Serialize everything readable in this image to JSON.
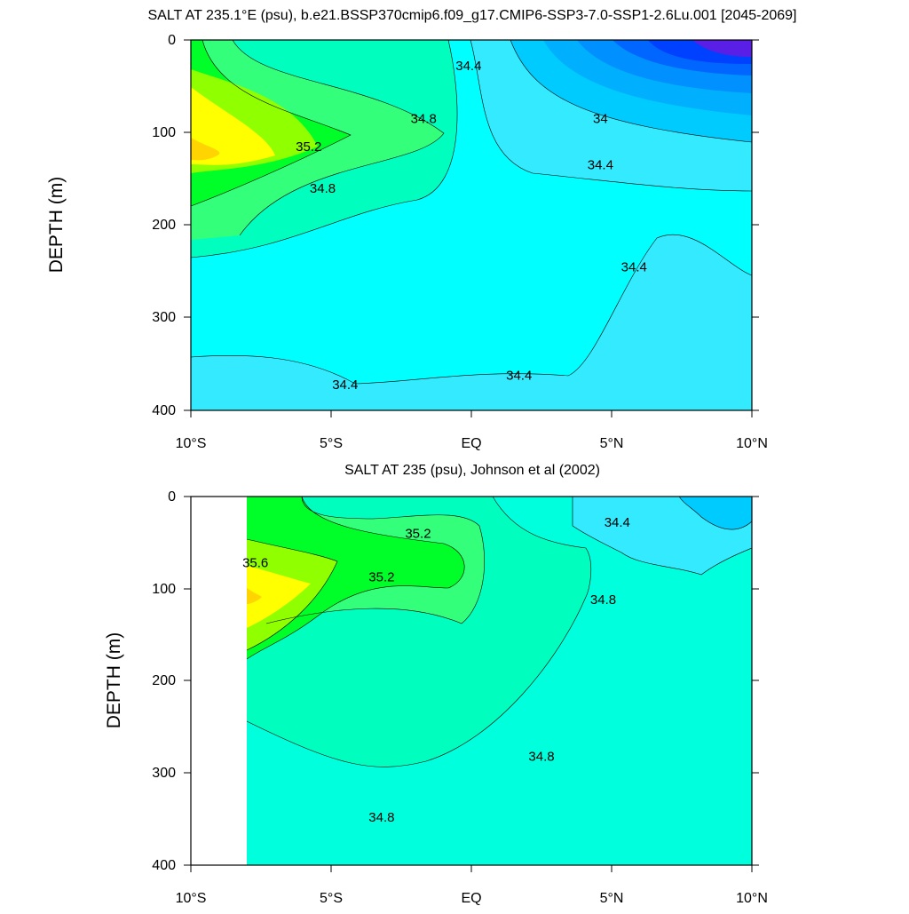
{
  "chart_data": [
    {
      "type": "contour",
      "title": "SALT AT 235.1°E (psu), b.e21.BSSP370cmip6.f09_g17.CMIP6-SSP3-7.0-SSP1-2.6Lu.001 [2045-2069]",
      "xlabel": "",
      "ylabel": "DEPTH (m)",
      "x_ticks": [
        "10°S",
        "5°S",
        "EQ",
        "5°N",
        "10°N"
      ],
      "y_ticks": [
        "0",
        "100",
        "200",
        "300",
        "400"
      ],
      "xlim": [
        -10,
        10
      ],
      "ylim": [
        400,
        0
      ],
      "contour_interval": 0.2,
      "contour_labels": [
        {
          "text": "34.4",
          "lon": -4.5,
          "depth": 372
        },
        {
          "text": "34.4",
          "lon": 1.7,
          "depth": 362
        },
        {
          "text": "34.4",
          "lon": 5.8,
          "depth": 245
        },
        {
          "text": "34.4",
          "lon": 4.6,
          "depth": 135
        },
        {
          "text": "34.4",
          "lon": -0.1,
          "depth": 28
        },
        {
          "text": "34",
          "lon": 4.6,
          "depth": 85
        },
        {
          "text": "34.8",
          "lon": -1.7,
          "depth": 85
        },
        {
          "text": "34.8",
          "lon": -5.3,
          "depth": 160
        },
        {
          "text": "35.2",
          "lon": -5.8,
          "depth": 115
        }
      ]
    },
    {
      "type": "contour",
      "title": "SALT AT 235 (psu), Johnson et al (2002)",
      "xlabel": "",
      "ylabel": "DEPTH (m)",
      "x_ticks": [
        "10°S",
        "5°S",
        "EQ",
        "5°N",
        "10°N"
      ],
      "y_ticks": [
        "0",
        "100",
        "200",
        "300",
        "400"
      ],
      "xlim": [
        -10,
        10
      ],
      "ylim": [
        400,
        0
      ],
      "contour_interval": 0.2,
      "contour_labels": [
        {
          "text": "34.4",
          "lon": 5.2,
          "depth": 28
        },
        {
          "text": "34.8",
          "lon": 4.7,
          "depth": 112
        },
        {
          "text": "34.8",
          "lon": 2.5,
          "depth": 282
        },
        {
          "text": "34.8",
          "lon": -3.2,
          "depth": 348
        },
        {
          "text": "35.2",
          "lon": -1.9,
          "depth": 40
        },
        {
          "text": "35.2",
          "lon": -3.2,
          "depth": 87
        },
        {
          "text": "35.6",
          "lon": -7.7,
          "depth": 72
        }
      ]
    }
  ]
}
